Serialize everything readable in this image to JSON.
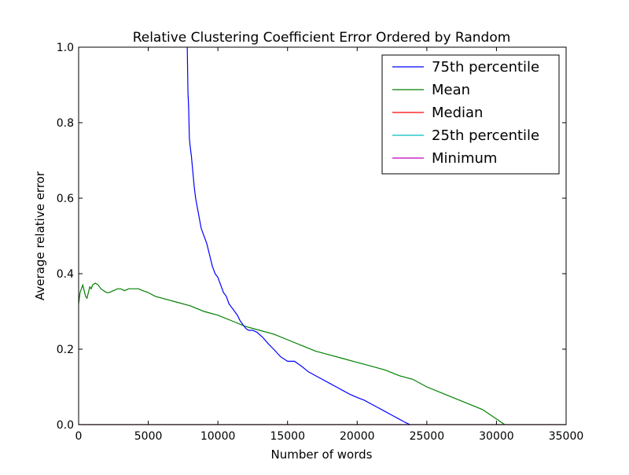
{
  "chart_data": {
    "type": "line",
    "title": "Relative Clustering Coefficient Error Ordered by Random",
    "xlabel": "Number of words",
    "ylabel": "Average relative error",
    "xlim": [
      0,
      35000
    ],
    "ylim": [
      0.0,
      1.0
    ],
    "xticks": [
      0,
      5000,
      10000,
      15000,
      20000,
      25000,
      30000,
      35000
    ],
    "xtick_labels": [
      "0",
      "5000",
      "10000",
      "15000",
      "20000",
      "25000",
      "30000",
      "35000"
    ],
    "yticks": [
      0.0,
      0.2,
      0.4,
      0.6,
      0.8,
      1.0
    ],
    "ytick_labels": [
      "0.0",
      "0.2",
      "0.4",
      "0.6",
      "0.8",
      "1.0"
    ],
    "grid": false,
    "legend_position": "upper right",
    "series": [
      {
        "name": "75th percentile",
        "color": "#0000ff",
        "x": [
          7800,
          7850,
          7900,
          7950,
          8000,
          8100,
          8200,
          8300,
          8400,
          8500,
          8600,
          8700,
          8800,
          9000,
          9200,
          9400,
          9600,
          9800,
          10000,
          10200,
          10400,
          10600,
          10800,
          11000,
          11200,
          11400,
          11600,
          11800,
          12000,
          12200,
          12500,
          12800,
          13200,
          13600,
          14000,
          14500,
          15000,
          15500,
          16000,
          16500,
          17000,
          17500,
          18000,
          18500,
          19000,
          19500,
          20000,
          20500,
          21000,
          21500,
          22000,
          22500,
          23000,
          23500,
          23800
        ],
        "y": [
          1.0,
          0.88,
          0.84,
          0.76,
          0.74,
          0.71,
          0.67,
          0.63,
          0.6,
          0.58,
          0.56,
          0.54,
          0.52,
          0.5,
          0.48,
          0.45,
          0.42,
          0.4,
          0.39,
          0.37,
          0.35,
          0.34,
          0.32,
          0.31,
          0.3,
          0.29,
          0.275,
          0.265,
          0.255,
          0.25,
          0.25,
          0.245,
          0.232,
          0.215,
          0.2,
          0.18,
          0.168,
          0.168,
          0.155,
          0.14,
          0.13,
          0.12,
          0.11,
          0.1,
          0.09,
          0.08,
          0.072,
          0.065,
          0.055,
          0.045,
          0.035,
          0.025,
          0.015,
          0.005,
          0.0
        ]
      },
      {
        "name": "Mean",
        "color": "#008000",
        "x": [
          0,
          100,
          200,
          300,
          400,
          500,
          600,
          700,
          800,
          900,
          1000,
          1200,
          1400,
          1600,
          1800,
          2000,
          2200,
          2500,
          2800,
          3000,
          3300,
          3600,
          4000,
          4300,
          4600,
          5000,
          5500,
          6000,
          7000,
          8000,
          9000,
          10000,
          11000,
          12000,
          13000,
          14000,
          15000,
          16000,
          17000,
          18000,
          19000,
          20000,
          21000,
          22000,
          23000,
          24000,
          25000,
          26000,
          27000,
          28000,
          29000,
          30000,
          30600
        ],
        "y": [
          0.32,
          0.35,
          0.36,
          0.37,
          0.355,
          0.34,
          0.335,
          0.35,
          0.365,
          0.36,
          0.37,
          0.375,
          0.37,
          0.36,
          0.355,
          0.35,
          0.35,
          0.355,
          0.36,
          0.36,
          0.355,
          0.36,
          0.36,
          0.36,
          0.355,
          0.35,
          0.34,
          0.335,
          0.325,
          0.315,
          0.3,
          0.29,
          0.275,
          0.26,
          0.25,
          0.24,
          0.225,
          0.21,
          0.195,
          0.185,
          0.175,
          0.165,
          0.155,
          0.145,
          0.13,
          0.12,
          0.1,
          0.085,
          0.07,
          0.055,
          0.04,
          0.015,
          0.0
        ]
      },
      {
        "name": "Median",
        "color": "#ff0000",
        "x": [
          0,
          35000
        ],
        "y": [
          0.0,
          0.0
        ]
      },
      {
        "name": "25th percentile",
        "color": "#00bfbf",
        "x": [
          0,
          35000
        ],
        "y": [
          0.0,
          0.0
        ]
      },
      {
        "name": "Minimum",
        "color": "#bf00bf",
        "x": [
          0,
          35000
        ],
        "y": [
          0.0,
          0.0
        ]
      }
    ]
  }
}
